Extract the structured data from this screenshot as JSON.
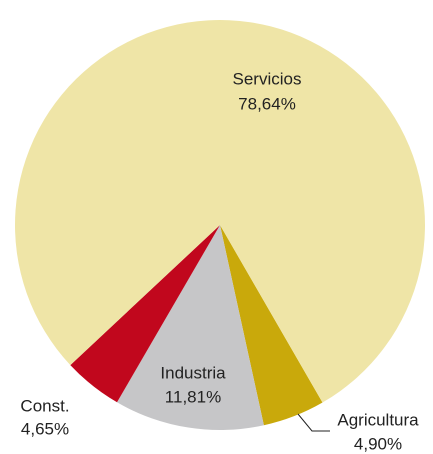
{
  "chart_data": {
    "type": "pie",
    "categories": [
      "Agricultura",
      "Industria",
      "Const.",
      "Servicios"
    ],
    "values": [
      4.9,
      11.81,
      4.65,
      78.64
    ],
    "value_labels": [
      "4,90%",
      "11,81%",
      "4,65%",
      "78,64%"
    ],
    "colors": [
      "#c9a90b",
      "#c6c6c8",
      "#c1071d",
      "#efe5a7"
    ]
  }
}
